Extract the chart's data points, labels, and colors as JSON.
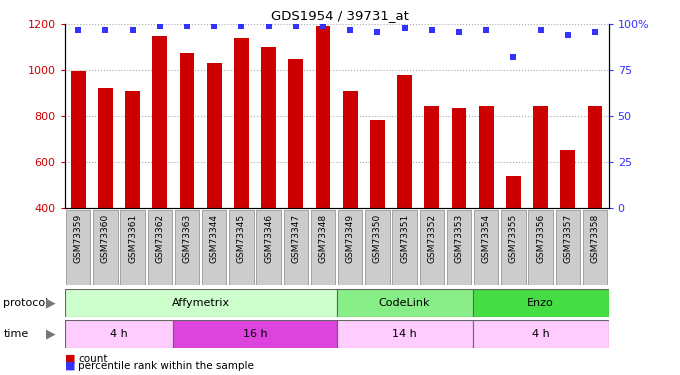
{
  "title": "GDS1954 / 39731_at",
  "samples": [
    "GSM73359",
    "GSM73360",
    "GSM73361",
    "GSM73362",
    "GSM73363",
    "GSM73344",
    "GSM73345",
    "GSM73346",
    "GSM73347",
    "GSM73348",
    "GSM73349",
    "GSM73350",
    "GSM73351",
    "GSM73352",
    "GSM73353",
    "GSM73354",
    "GSM73355",
    "GSM73356",
    "GSM73357",
    "GSM73358"
  ],
  "counts": [
    998,
    921,
    910,
    1148,
    1075,
    1033,
    1140,
    1100,
    1050,
    1195,
    910,
    785,
    980,
    843,
    835,
    843,
    540,
    843,
    655,
    843
  ],
  "percentiles": [
    97,
    97,
    97,
    99,
    99,
    99,
    99,
    99,
    99,
    99,
    97,
    96,
    98,
    97,
    96,
    97,
    82,
    97,
    94,
    96
  ],
  "ylim_left": [
    400,
    1200
  ],
  "ylim_right": [
    0,
    100
  ],
  "yticks_left": [
    400,
    600,
    800,
    1000,
    1200
  ],
  "yticks_right": [
    0,
    25,
    50,
    75,
    100
  ],
  "bar_color": "#cc0000",
  "dot_color": "#3333ff",
  "grid_color": "#aaaaaa",
  "protocol_groups": [
    {
      "label": "Affymetrix",
      "start": 0,
      "end": 9,
      "color": "#ccffcc"
    },
    {
      "label": "CodeLink",
      "start": 10,
      "end": 14,
      "color": "#88ee88"
    },
    {
      "label": "Enzo",
      "start": 15,
      "end": 19,
      "color": "#44dd44"
    }
  ],
  "time_groups": [
    {
      "label": "4 h",
      "start": 0,
      "end": 3,
      "color": "#ffccff"
    },
    {
      "label": "16 h",
      "start": 4,
      "end": 9,
      "color": "#dd44dd"
    },
    {
      "label": "14 h",
      "start": 10,
      "end": 14,
      "color": "#ffccff"
    },
    {
      "label": "4 h",
      "start": 15,
      "end": 19,
      "color": "#ffccff"
    }
  ],
  "legend_items": [
    {
      "label": "count",
      "color": "#cc0000"
    },
    {
      "label": "percentile rank within the sample",
      "color": "#3333ff"
    }
  ],
  "bg_color": "#ffffff",
  "tick_color_left": "#cc0000",
  "tick_color_right": "#3333ff",
  "xticklabel_bg": "#cccccc",
  "n_samples": 20
}
